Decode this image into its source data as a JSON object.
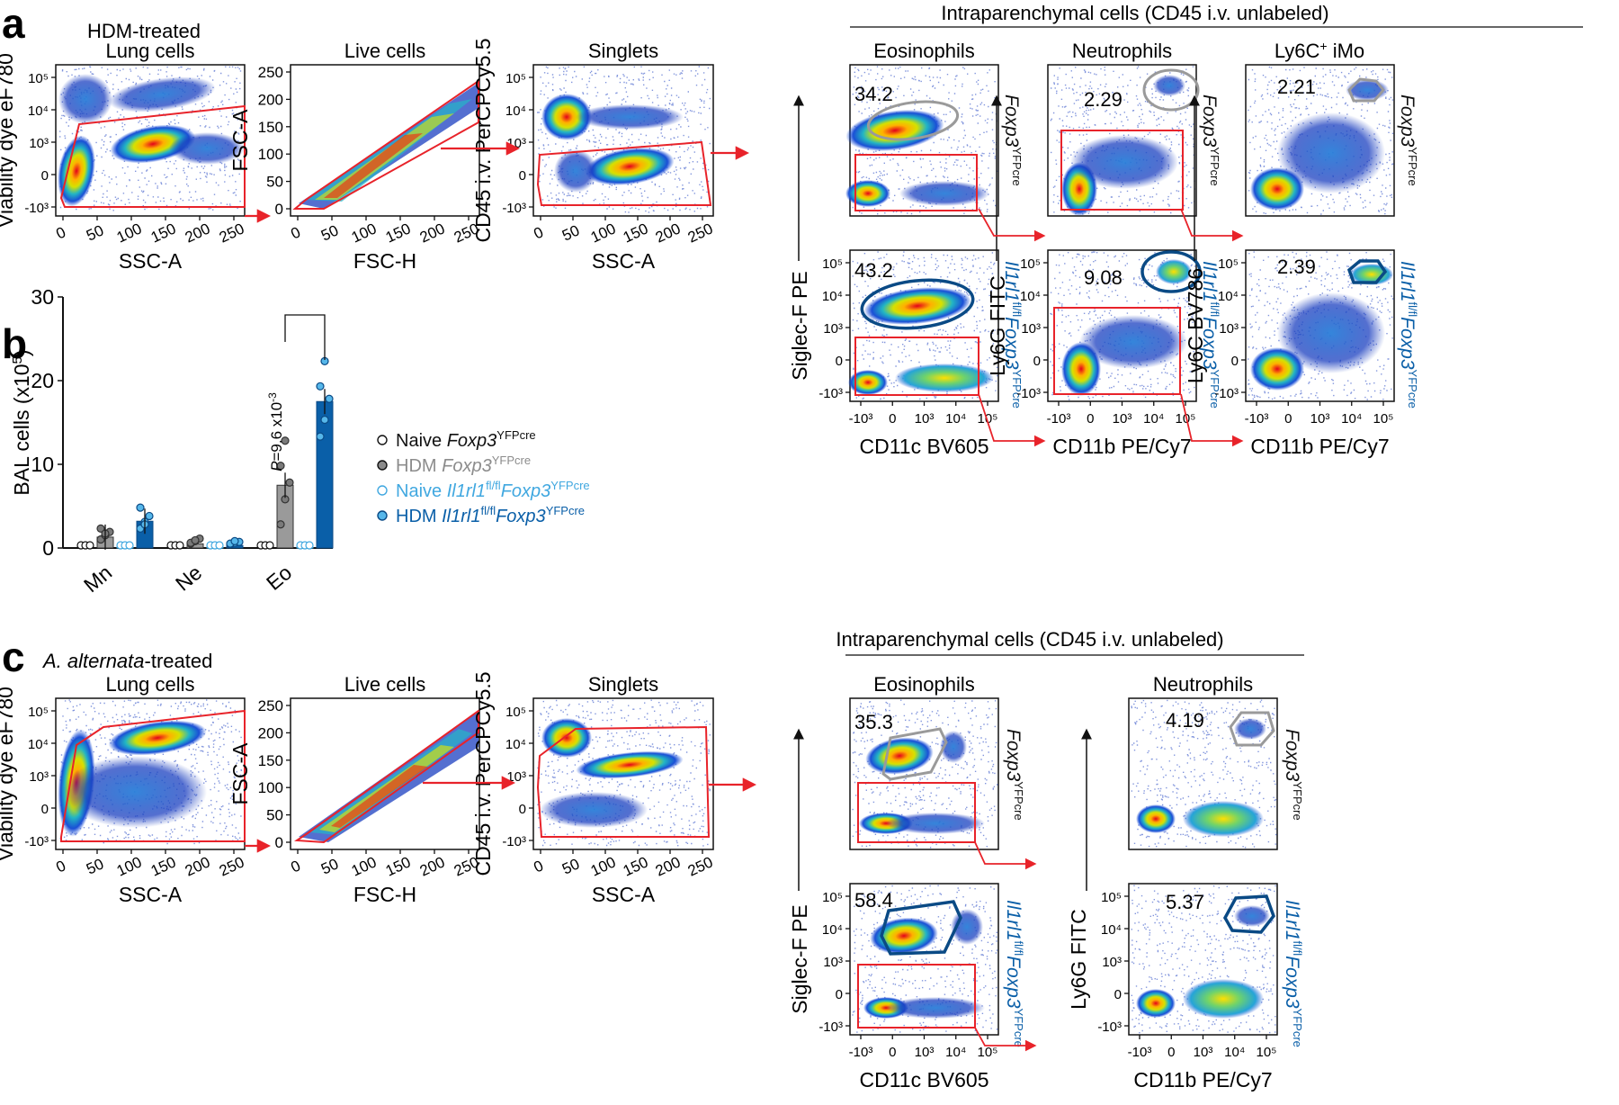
{
  "figure": {
    "letters": {
      "a": "a",
      "b": "b",
      "c": "c"
    },
    "treatment_a": "HDM-treated",
    "treatment_c_italic": "A. alternata",
    "treatment_c_rest": "-treated",
    "intraparenchymal_label": "Intraparenchymal cells (CD45 i.v. unlabeled)",
    "gates": {
      "lung": "Lung cells",
      "live": "Live cells",
      "singlets": "Singlets",
      "eos": "Eosinophils",
      "neut": "Neutrophils",
      "ly6c_pre": "Ly6C",
      "ly6c_sup": "+",
      "ly6c_post": " iMo"
    },
    "axes": {
      "viability": "Viability dye eF780",
      "ssc": "SSC-A",
      "fsca": "FSC-A",
      "fsch": "FSC-H",
      "cd45": "CD45 i.v. PerCPCy5.5",
      "siglec": "Siglec-F PE",
      "ly6g": "Ly6G FITC",
      "ly6c": "Ly6C BV786",
      "cd11c": "CD11c BV605",
      "cd11b": "CD11b PE/Cy7"
    },
    "genotypes": {
      "foxp3": "Foxp3",
      "sup": "YFPcre",
      "il1rl1": "Il1rl1",
      "fl": "fl/fl"
    },
    "gate_values_a": {
      "eos_wt": "34.2",
      "eos_ko": "43.2",
      "neut_wt": "2.29",
      "neut_ko": "9.08",
      "ly6c_wt": "2.21",
      "ly6c_ko": "2.39"
    },
    "gate_values_c": {
      "eos_wt": "35.3",
      "eos_ko": "58.4",
      "neut_wt": "4.19",
      "neut_ko": "5.37"
    }
  },
  "chart_data": [
    {
      "type": "bar",
      "panel": "b",
      "title": "",
      "ylabel": "BAL cells (x10",
      "ylabel_sup": "5",
      "ylabel_end": ")",
      "ylim": [
        0,
        30
      ],
      "yticks": [
        "0",
        "10",
        "20",
        "30"
      ],
      "categories": [
        "Mn",
        "Ne",
        "Eo"
      ],
      "series": [
        {
          "name": "Naive Foxp3YFPcre",
          "values": [
            0.1,
            0.1,
            0.1
          ],
          "points": [
            [
              0,
              0,
              0
            ],
            [
              0,
              0,
              0
            ],
            [
              0,
              0,
              0
            ]
          ],
          "color": "#ffffff",
          "stroke": "#111111"
        },
        {
          "name": "HDM Foxp3YFPcre",
          "values": [
            1.3,
            0.5,
            7.5
          ],
          "points": [
            [
              0.7,
              1.2,
              1.6,
              2.0,
              1.4
            ],
            [
              0.2,
              0.5,
              0.8,
              0.3,
              0.6
            ],
            [
              2.5,
              5.5,
              7.5,
              9.5,
              12.5
            ]
          ],
          "color": "#9a9a9a",
          "stroke": "#333333"
        },
        {
          "name": "Naive Il1rl1fl/flFoxp3YFPcre",
          "values": [
            0.1,
            0.1,
            0.1
          ],
          "points": [
            [
              0,
              0,
              0
            ],
            [
              0,
              0,
              0
            ],
            [
              0,
              0,
              0
            ]
          ],
          "color": "#ffffff",
          "stroke": "#41a8e0"
        },
        {
          "name": "HDM Il1rl1fl/flFoxp3YFPcre",
          "values": [
            3.2,
            0.3,
            17.5
          ],
          "points": [
            [
              2.0,
              2.8,
              3.5,
              4.5,
              2.5
            ],
            [
              0.1,
              0.3,
              0.4,
              0.2,
              0.5
            ],
            [
              13,
              15,
              17.5,
              19,
              22
            ]
          ],
          "color": "#0a5fa8",
          "stroke": "#0a4a85"
        }
      ],
      "annotation": {
        "p_label": "P",
        "p_value": "=9.6 x10",
        "p_exp": "-3"
      },
      "legend": [
        {
          "prefix": "Naive ",
          "italic": "Foxp3",
          "sup": "YFPcre",
          "color": "#111111"
        },
        {
          "prefix": "HDM ",
          "italic": "Foxp3",
          "sup": "YFPcre",
          "color": "#8c8c8c"
        },
        {
          "prefix": "Naive ",
          "italic": "Il1rl1",
          "sup1": "fl/fl",
          "italic2": "Foxp3",
          "sup": "YFPcre",
          "color": "#41a8e0"
        },
        {
          "prefix": "HDM ",
          "italic": "Il1rl1",
          "sup1": "fl/fl",
          "italic2": "Foxp3",
          "sup": "YFPcre",
          "color": "#0a5fa8"
        }
      ]
    },
    {
      "type": "scatter",
      "panel": "flow",
      "ticks": {
        "bi": [
          "10⁵",
          "10⁴",
          "10³",
          "0",
          "-10³"
        ],
        "bix": [
          "-10³",
          "0",
          "10³",
          "10⁴",
          "10⁵"
        ],
        "lin": [
          "0",
          "50",
          "100",
          "150",
          "200",
          "250"
        ],
        "linx": [
          "0",
          "50",
          "100",
          "150",
          "200",
          "250"
        ]
      }
    }
  ]
}
